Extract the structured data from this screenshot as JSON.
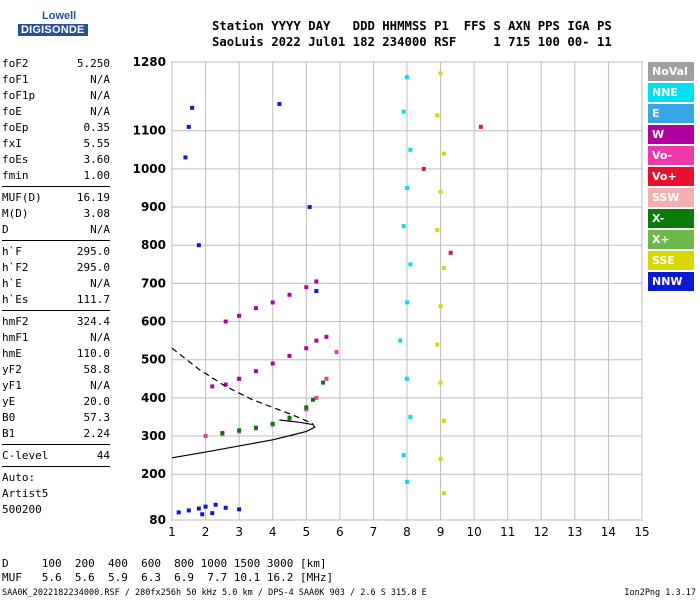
{
  "logo": {
    "line1": "Lowell",
    "line2": "DIGISONDE"
  },
  "header": {
    "line1": "Station YYYY DAY   DDD HHMMSS P1  FFS S AXN PPS IGA PS",
    "line2": "SaoLuis 2022 Jul01 182 234000 RSF     1 715 100 00- 11"
  },
  "params": [
    {
      "group": [
        {
          "k": "foF2",
          "v": "5.250"
        },
        {
          "k": "foF1",
          "v": "N/A"
        },
        {
          "k": "foF1p",
          "v": "N/A"
        },
        {
          "k": "foE",
          "v": "N/A"
        },
        {
          "k": "foEp",
          "v": "0.35"
        },
        {
          "k": "fxI",
          "v": "5.55"
        },
        {
          "k": "foEs",
          "v": "3.60"
        },
        {
          "k": "fmin",
          "v": "1.00"
        }
      ]
    },
    {
      "group": [
        {
          "k": "MUF(D)",
          "v": "16.19"
        },
        {
          "k": "M(D)",
          "v": "3.08"
        },
        {
          "k": "D",
          "v": "N/A"
        }
      ]
    },
    {
      "group": [
        {
          "k": "h`F",
          "v": "295.0"
        },
        {
          "k": "h`F2",
          "v": "295.0"
        },
        {
          "k": "h`E",
          "v": "N/A"
        },
        {
          "k": "h`Es",
          "v": "111.7"
        }
      ]
    },
    {
      "group": [
        {
          "k": "hmF2",
          "v": "324.4"
        },
        {
          "k": "hmF1",
          "v": "N/A"
        },
        {
          "k": "hmE",
          "v": "110.0"
        },
        {
          "k": "yF2",
          "v": "58.8"
        },
        {
          "k": "yF1",
          "v": "N/A"
        },
        {
          "k": "yE",
          "v": "20.0"
        },
        {
          "k": "B0",
          "v": "57.3"
        },
        {
          "k": "B1",
          "v": "2.24"
        }
      ]
    },
    {
      "group": [
        {
          "k": "C-level",
          "v": "44"
        }
      ]
    }
  ],
  "autoscale": {
    "line1": "Auto:",
    "line2": "Artist5",
    "line3": "500200"
  },
  "legend": [
    {
      "label": "NoVal",
      "color": "#a0a0a0"
    },
    {
      "label": "NNE",
      "color": "#00e0f0"
    },
    {
      "label": "E",
      "color": "#3aa6ea"
    },
    {
      "label": "W",
      "color": "#b0009e"
    },
    {
      "label": "Vo-",
      "color": "#ee3aa8"
    },
    {
      "label": "Vo+",
      "color": "#e8102e"
    },
    {
      "label": "SSW",
      "color": "#f4b0b0"
    },
    {
      "label": "X-",
      "color": "#0a7a0a"
    },
    {
      "label": "X+",
      "color": "#6cb84a"
    },
    {
      "label": "SSE",
      "color": "#d8d800"
    },
    {
      "label": "NNW",
      "color": "#0a1ad0"
    }
  ],
  "chart_data": {
    "type": "scatter",
    "title": "",
    "xlabel": "",
    "ylabel": "",
    "xlim": [
      1,
      15
    ],
    "ylim": [
      80,
      1280
    ],
    "x_ticks": [
      "1",
      "2",
      "3",
      "4",
      "5",
      "6",
      "7",
      "8",
      "9",
      "10",
      "11",
      "12",
      "13",
      "14",
      "15"
    ],
    "y_ticks": [
      {
        "value": 80,
        "label": "80"
      },
      {
        "value": 200,
        "label": "200"
      },
      {
        "value": 300,
        "label": "300"
      },
      {
        "value": 400,
        "label": "400"
      },
      {
        "value": 500,
        "label": "500"
      },
      {
        "value": 600,
        "label": "600"
      },
      {
        "value": 700,
        "label": "700"
      },
      {
        "value": 800,
        "label": "800"
      },
      {
        "value": 900,
        "label": "900"
      },
      {
        "value": 1000,
        "label": "1000"
      },
      {
        "value": 1100,
        "label": "1100"
      },
      {
        "value": 1280,
        "label": "1280"
      }
    ],
    "grid": true,
    "series": [
      {
        "color": "#b0009e",
        "points": [
          [
            2.2,
            430
          ],
          [
            2.6,
            435
          ],
          [
            3.0,
            450
          ],
          [
            3.5,
            470
          ],
          [
            4.0,
            490
          ],
          [
            4.5,
            510
          ],
          [
            5.0,
            530
          ],
          [
            5.3,
            550
          ],
          [
            5.6,
            560
          ]
        ]
      },
      {
        "color": "#b0009e",
        "points": [
          [
            2.6,
            600
          ],
          [
            3.0,
            615
          ],
          [
            3.5,
            635
          ],
          [
            4.0,
            650
          ],
          [
            4.5,
            670
          ],
          [
            5.0,
            690
          ],
          [
            5.3,
            705
          ]
        ]
      },
      {
        "color": "#ee3aa8",
        "points": [
          [
            2.0,
            300
          ],
          [
            2.5,
            305
          ],
          [
            3.0,
            312
          ],
          [
            3.5,
            320
          ],
          [
            4.0,
            330
          ],
          [
            4.5,
            345
          ],
          [
            5.0,
            370
          ],
          [
            5.3,
            400
          ],
          [
            5.6,
            450
          ],
          [
            5.9,
            520
          ]
        ]
      },
      {
        "color": "#0a7a0a",
        "points": [
          [
            2.5,
            308
          ],
          [
            3.0,
            315
          ],
          [
            3.5,
            322
          ],
          [
            4.0,
            332
          ],
          [
            4.5,
            348
          ],
          [
            5.0,
            375
          ],
          [
            5.2,
            395
          ],
          [
            5.5,
            440
          ]
        ]
      },
      {
        "color": "#0a1ad0",
        "points": [
          [
            1.2,
            100
          ],
          [
            1.5,
            105
          ],
          [
            1.8,
            110
          ],
          [
            2.0,
            115
          ],
          [
            2.3,
            120
          ],
          [
            2.6,
            112
          ],
          [
            3.0,
            108
          ],
          [
            1.9,
            95
          ],
          [
            2.2,
            98
          ]
        ]
      },
      {
        "color": "#0a1ad0",
        "points": [
          [
            1.5,
            1110
          ],
          [
            1.4,
            1030
          ],
          [
            1.6,
            1160
          ],
          [
            4.2,
            1170
          ],
          [
            1.8,
            800
          ],
          [
            5.1,
            900
          ],
          [
            5.3,
            680
          ]
        ]
      },
      {
        "color": "#00e0f0",
        "points": [
          [
            8.0,
            1240
          ],
          [
            7.9,
            1150
          ],
          [
            8.1,
            1050
          ],
          [
            8.0,
            950
          ],
          [
            7.9,
            850
          ],
          [
            8.1,
            750
          ],
          [
            8.0,
            650
          ],
          [
            7.8,
            550
          ],
          [
            8.0,
            450
          ],
          [
            8.1,
            350
          ],
          [
            7.9,
            250
          ],
          [
            8.0,
            180
          ]
        ]
      },
      {
        "color": "#d8d800",
        "points": [
          [
            9.0,
            1250
          ],
          [
            8.9,
            1140
          ],
          [
            9.1,
            1040
          ],
          [
            9.0,
            940
          ],
          [
            8.9,
            840
          ],
          [
            9.1,
            740
          ],
          [
            9.0,
            640
          ],
          [
            8.9,
            540
          ],
          [
            9.0,
            440
          ],
          [
            9.1,
            340
          ],
          [
            9.0,
            240
          ],
          [
            9.1,
            150
          ]
        ]
      },
      {
        "color": "#e8102e",
        "points": [
          [
            10.2,
            1110
          ],
          [
            8.5,
            1000
          ],
          [
            9.3,
            780
          ]
        ]
      }
    ],
    "trace_solid": {
      "points": [
        [
          1,
          243
        ],
        [
          2,
          258
        ],
        [
          3,
          274
        ],
        [
          4,
          290
        ],
        [
          4.6,
          303
        ],
        [
          5.0,
          312
        ],
        [
          5.25,
          323
        ],
        [
          5.2,
          330
        ],
        [
          4.8,
          336
        ],
        [
          4.2,
          342
        ]
      ]
    },
    "trace_dashed": {
      "points": [
        [
          1,
          530
        ],
        [
          1.8,
          475
        ],
        [
          2.6,
          430
        ],
        [
          3.4,
          395
        ],
        [
          4.0,
          375
        ],
        [
          4.6,
          355
        ],
        [
          5.0,
          340
        ],
        [
          5.2,
          332
        ]
      ]
    }
  },
  "bottom_table": {
    "d_row": "D     100  200  400  600  800 1000 1500 3000 [km]",
    "muf_row": "MUF   5.6  5.6  5.9  6.3  6.9  7.7 10.1 16.2 [MHz]"
  },
  "footer": {
    "left": "SAA0K_2022182234000.RSF / 280fx256h 50 kHz 5.0 km / DPS-4 SAA0K 903 / 2.6 S 315.8 E",
    "right": "Ion2Png 1.3.17"
  }
}
